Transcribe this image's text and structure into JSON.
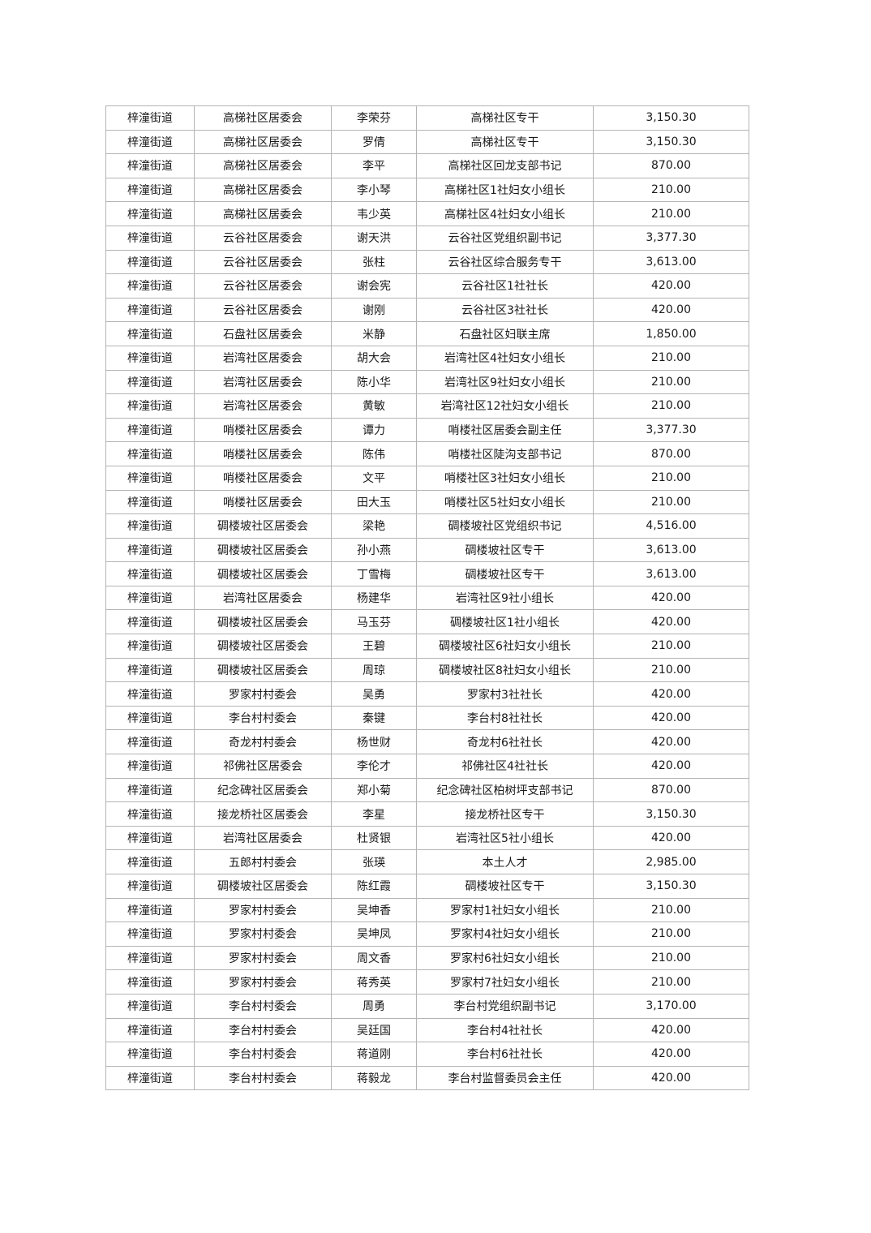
{
  "table": {
    "rows": [
      [
        "梓潼街道",
        "高梯社区居委会",
        "李荣芬",
        "高梯社区专干",
        "3,150.30"
      ],
      [
        "梓潼街道",
        "高梯社区居委会",
        "罗倩",
        "高梯社区专干",
        "3,150.30"
      ],
      [
        "梓潼街道",
        "高梯社区居委会",
        "李平",
        "高梯社区回龙支部书记",
        "870.00"
      ],
      [
        "梓潼街道",
        "高梯社区居委会",
        "李小琴",
        "高梯社区1社妇女小组长",
        "210.00"
      ],
      [
        "梓潼街道",
        "高梯社区居委会",
        "韦少英",
        "高梯社区4社妇女小组长",
        "210.00"
      ],
      [
        "梓潼街道",
        "云谷社区居委会",
        "谢天洪",
        "云谷社区党组织副书记",
        "3,377.30"
      ],
      [
        "梓潼街道",
        "云谷社区居委会",
        "张柱",
        "云谷社区综合服务专干",
        "3,613.00"
      ],
      [
        "梓潼街道",
        "云谷社区居委会",
        "谢会宪",
        "云谷社区1社社长",
        "420.00"
      ],
      [
        "梓潼街道",
        "云谷社区居委会",
        "谢刚",
        "云谷社区3社社长",
        "420.00"
      ],
      [
        "梓潼街道",
        "石盘社区居委会",
        "米静",
        "石盘社区妇联主席",
        "1,850.00"
      ],
      [
        "梓潼街道",
        "岩湾社区居委会",
        "胡大会",
        "岩湾社区4社妇女小组长",
        "210.00"
      ],
      [
        "梓潼街道",
        "岩湾社区居委会",
        "陈小华",
        "岩湾社区9社妇女小组长",
        "210.00"
      ],
      [
        "梓潼街道",
        "岩湾社区居委会",
        "黄敏",
        "岩湾社区12社妇女小组长",
        "210.00"
      ],
      [
        "梓潼街道",
        "哨楼社区居委会",
        "谭力",
        "哨楼社区居委会副主任",
        "3,377.30"
      ],
      [
        "梓潼街道",
        "哨楼社区居委会",
        "陈伟",
        "哨楼社区陡沟支部书记",
        "870.00"
      ],
      [
        "梓潼街道",
        "哨楼社区居委会",
        "文平",
        "哨楼社区3社妇女小组长",
        "210.00"
      ],
      [
        "梓潼街道",
        "哨楼社区居委会",
        "田大玉",
        "哨楼社区5社妇女小组长",
        "210.00"
      ],
      [
        "梓潼街道",
        "碉楼坡社区居委会",
        "梁艳",
        "碉楼坡社区党组织书记",
        "4,516.00"
      ],
      [
        "梓潼街道",
        "碉楼坡社区居委会",
        "孙小燕",
        "碉楼坡社区专干",
        "3,613.00"
      ],
      [
        "梓潼街道",
        "碉楼坡社区居委会",
        "丁雪梅",
        "碉楼坡社区专干",
        "3,613.00"
      ],
      [
        "梓潼街道",
        "岩湾社区居委会",
        "杨建华",
        "岩湾社区9社小组长",
        "420.00"
      ],
      [
        "梓潼街道",
        "碉楼坡社区居委会",
        "马玉芬",
        "碉楼坡社区1社小组长",
        "420.00"
      ],
      [
        "梓潼街道",
        "碉楼坡社区居委会",
        "王碧",
        "碉楼坡社区6社妇女小组长",
        "210.00"
      ],
      [
        "梓潼街道",
        "碉楼坡社区居委会",
        "周琼",
        "碉楼坡社区8社妇女小组长",
        "210.00"
      ],
      [
        "梓潼街道",
        "罗家村村委会",
        "吴勇",
        "罗家村3社社长",
        "420.00"
      ],
      [
        "梓潼街道",
        "李台村村委会",
        "秦键",
        "李台村8社社长",
        "420.00"
      ],
      [
        "梓潼街道",
        "奇龙村村委会",
        "杨世财",
        "奇龙村6社社长",
        "420.00"
      ],
      [
        "梓潼街道",
        "祁佛社区居委会",
        "李伦才",
        "祁佛社区4社社长",
        "420.00"
      ],
      [
        "梓潼街道",
        "纪念碑社区居委会",
        "郑小菊",
        "纪念碑社区柏树坪支部书记",
        "870.00"
      ],
      [
        "梓潼街道",
        "接龙桥社区居委会",
        "李星",
        "接龙桥社区专干",
        "3,150.30"
      ],
      [
        "梓潼街道",
        "岩湾社区居委会",
        "杜贤银",
        "岩湾社区5社小组长",
        "420.00"
      ],
      [
        "梓潼街道",
        "五郎村村委会",
        "张瑛",
        "本土人才",
        "2,985.00"
      ],
      [
        "梓潼街道",
        "碉楼坡社区居委会",
        "陈红霞",
        "碉楼坡社区专干",
        "3,150.30"
      ],
      [
        "梓潼街道",
        "罗家村村委会",
        "吴坤香",
        "罗家村1社妇女小组长",
        "210.00"
      ],
      [
        "梓潼街道",
        "罗家村村委会",
        "吴坤凤",
        "罗家村4社妇女小组长",
        "210.00"
      ],
      [
        "梓潼街道",
        "罗家村村委会",
        "周文香",
        "罗家村6社妇女小组长",
        "210.00"
      ],
      [
        "梓潼街道",
        "罗家村村委会",
        "蒋秀英",
        "罗家村7社妇女小组长",
        "210.00"
      ],
      [
        "梓潼街道",
        "李台村村委会",
        "周勇",
        "李台村党组织副书记",
        "3,170.00"
      ],
      [
        "梓潼街道",
        "李台村村委会",
        "吴廷国",
        "李台村4社社长",
        "420.00"
      ],
      [
        "梓潼街道",
        "李台村村委会",
        "蒋道刚",
        "李台村6社社长",
        "420.00"
      ],
      [
        "梓潼街道",
        "李台村村委会",
        "蒋毅龙",
        "李台村监督委员会主任",
        "420.00"
      ]
    ]
  }
}
